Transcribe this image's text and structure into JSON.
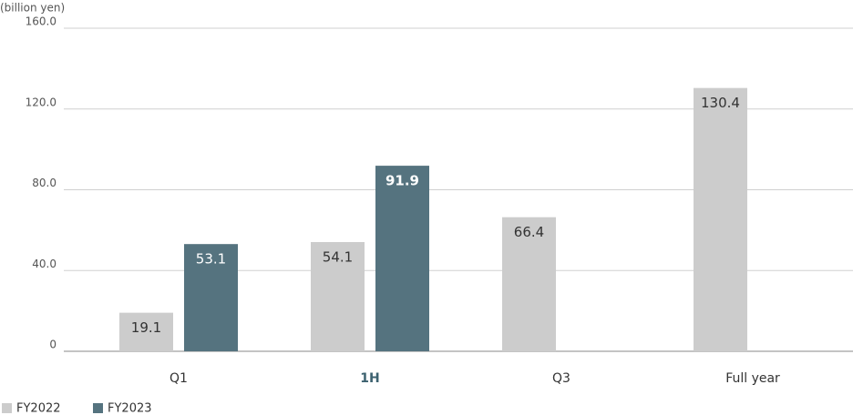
{
  "chart_data": {
    "type": "bar",
    "y_axis_label": "(billion yen)",
    "categories": [
      "Q1",
      "1H",
      "Q3",
      "Full year"
    ],
    "series": [
      {
        "name": "FY2022",
        "color": "#cccccc",
        "values": [
          19.1,
          54.1,
          66.4,
          130.4
        ]
      },
      {
        "name": "FY2023",
        "color": "#55737f",
        "values": [
          53.1,
          91.9,
          null,
          null
        ]
      }
    ],
    "ylim": [
      0,
      160
    ],
    "yticks": [
      0,
      {
        "value": 40,
        "label": "40.0"
      },
      {
        "value": 80,
        "label": "80.0"
      },
      {
        "value": 120,
        "label": "120.0"
      },
      {
        "value": 160,
        "label": "160.0"
      }
    ],
    "grid": true,
    "legend": "bottom-left"
  }
}
